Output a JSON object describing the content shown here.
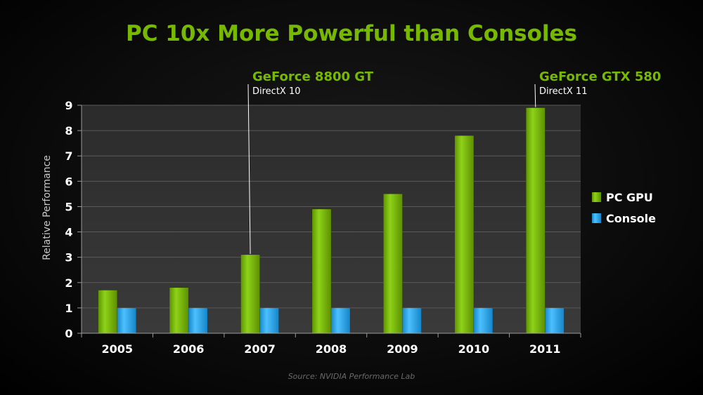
{
  "title": "PC 10x More Powerful than Consoles",
  "source": "Source:  NVIDIA Performance Lab",
  "chart_data": {
    "type": "bar",
    "categories": [
      "2005",
      "2006",
      "2007",
      "2008",
      "2009",
      "2010",
      "2011"
    ],
    "series": [
      {
        "name": "PC GPU",
        "color": "#76b900",
        "values": [
          1.7,
          1.8,
          3.1,
          4.9,
          5.5,
          7.8,
          8.9
        ]
      },
      {
        "name": "Console",
        "color": "#2aa9f0",
        "values": [
          1,
          1,
          1,
          1,
          1,
          1,
          1
        ]
      }
    ],
    "ylabel": "Relative Performance",
    "xlabel": "",
    "ylim": [
      0,
      9
    ],
    "yticks": [
      0,
      1,
      2,
      3,
      4,
      5,
      6,
      7,
      8,
      9
    ],
    "grid": true,
    "legend_position": "right",
    "annotations": [
      {
        "category": "2007",
        "series": "PC GPU",
        "title": "GeForce 8800 GT",
        "subtitle": "DirectX 10"
      },
      {
        "category": "2011",
        "series": "PC GPU",
        "title": "GeForce GTX 580",
        "subtitle": "DirectX 11"
      }
    ]
  }
}
